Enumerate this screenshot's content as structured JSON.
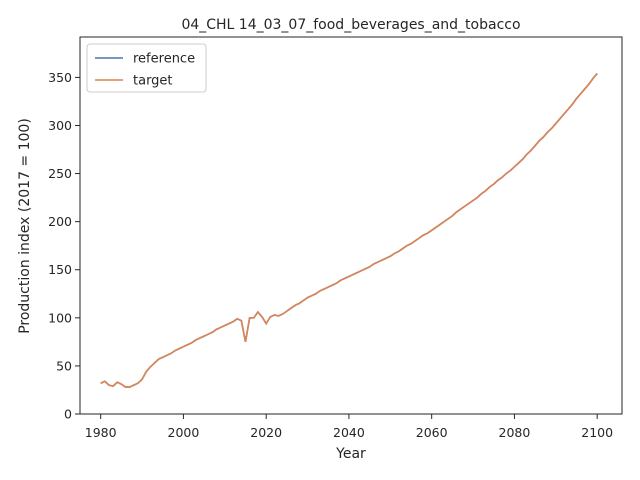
{
  "chart_data": {
    "type": "line",
    "title": "04_CHL 14_03_07_food_beverages_and_tobacco",
    "x_label": "Year",
    "y_label": "Production index (2017 = 100)",
    "x": [
      1980,
      1981,
      1982,
      1983,
      1984,
      1985,
      1986,
      1987,
      1988,
      1989,
      1990,
      1991,
      1992,
      1993,
      1994,
      1995,
      1996,
      1997,
      1998,
      1999,
      2000,
      2001,
      2002,
      2003,
      2004,
      2005,
      2006,
      2007,
      2008,
      2009,
      2010,
      2011,
      2012,
      2013,
      2014,
      2015,
      2016,
      2017,
      2018,
      2019,
      2020,
      2021,
      2022,
      2023,
      2024,
      2025,
      2026,
      2027,
      2028,
      2029,
      2030,
      2031,
      2032,
      2033,
      2034,
      2035,
      2036,
      2037,
      2038,
      2039,
      2040,
      2041,
      2042,
      2043,
      2044,
      2045,
      2046,
      2047,
      2048,
      2049,
      2050,
      2051,
      2052,
      2053,
      2054,
      2055,
      2056,
      2057,
      2058,
      2059,
      2060,
      2061,
      2062,
      2063,
      2064,
      2065,
      2066,
      2067,
      2068,
      2069,
      2070,
      2071,
      2072,
      2073,
      2074,
      2075,
      2076,
      2077,
      2078,
      2079,
      2080,
      2081,
      2082,
      2083,
      2084,
      2085,
      2086,
      2087,
      2088,
      2089,
      2090,
      2091,
      2092,
      2093,
      2094,
      2095,
      2096,
      2097,
      2098,
      2099,
      2100
    ],
    "series": [
      {
        "name": "reference",
        "color": "#4c72b0",
        "values": [
          32,
          34,
          30,
          29,
          33,
          31,
          28,
          28,
          30,
          32,
          36,
          44,
          49,
          53,
          57,
          59,
          61,
          63,
          66,
          68,
          70,
          72,
          74,
          77,
          79,
          81,
          83,
          85,
          88,
          90,
          92,
          94,
          96,
          99,
          97,
          75,
          100,
          100,
          106,
          101,
          94,
          101,
          103,
          102,
          104,
          107,
          110,
          113,
          115,
          118,
          121,
          123,
          125,
          128,
          130,
          132,
          134,
          136,
          139,
          141,
          143,
          145,
          147,
          149,
          151,
          153,
          156,
          158,
          160,
          162,
          164,
          167,
          169,
          172,
          175,
          177,
          180,
          183,
          186,
          188,
          191,
          194,
          197,
          200,
          203,
          206,
          210,
          213,
          216,
          219,
          222,
          225,
          229,
          232,
          236,
          239,
          243,
          246,
          250,
          253,
          257,
          261,
          265,
          270,
          274,
          279,
          284,
          288,
          293,
          297,
          302,
          307,
          312,
          317,
          322,
          328,
          333,
          338,
          343,
          349,
          354
        ]
      },
      {
        "name": "target",
        "color": "#dd8452",
        "values": [
          32,
          34,
          30,
          29,
          33,
          31,
          28,
          28,
          30,
          32,
          36,
          44,
          49,
          53,
          57,
          59,
          61,
          63,
          66,
          68,
          70,
          72,
          74,
          77,
          79,
          81,
          83,
          85,
          88,
          90,
          92,
          94,
          96,
          99,
          97,
          75,
          100,
          100,
          106,
          101,
          94,
          101,
          103,
          102,
          104,
          107,
          110,
          113,
          115,
          118,
          121,
          123,
          125,
          128,
          130,
          132,
          134,
          136,
          139,
          141,
          143,
          145,
          147,
          149,
          151,
          153,
          156,
          158,
          160,
          162,
          164,
          167,
          169,
          172,
          175,
          177,
          180,
          183,
          186,
          188,
          191,
          194,
          197,
          200,
          203,
          206,
          210,
          213,
          216,
          219,
          222,
          225,
          229,
          232,
          236,
          239,
          243,
          246,
          250,
          253,
          257,
          261,
          265,
          270,
          274,
          279,
          284,
          288,
          293,
          297,
          302,
          307,
          312,
          317,
          322,
          328,
          333,
          338,
          343,
          349,
          354
        ]
      }
    ],
    "xlim": [
      1975,
      2106
    ],
    "ylim": [
      0,
      392
    ],
    "xticks": [
      1980,
      2000,
      2020,
      2040,
      2060,
      2080,
      2100
    ],
    "yticks": [
      0,
      50,
      100,
      150,
      200,
      250,
      300,
      350
    ],
    "legend": "upper left"
  }
}
